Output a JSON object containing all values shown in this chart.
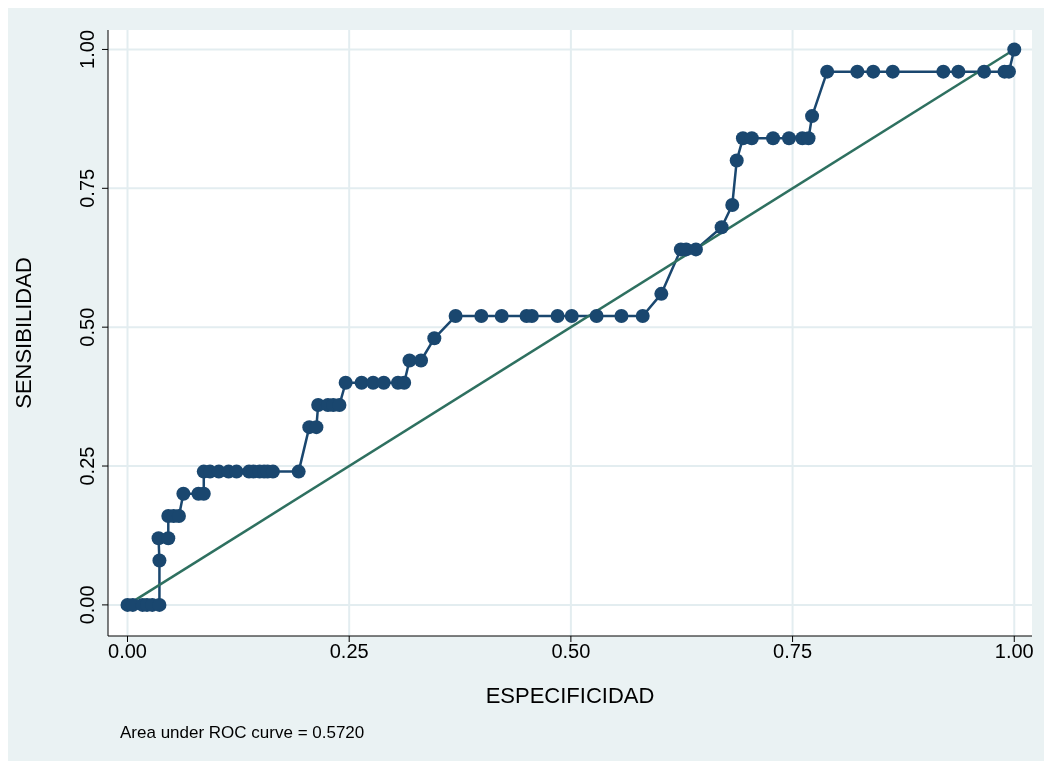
{
  "chart_data": {
    "type": "line",
    "xlabel": "ESPECIFICIDAD",
    "ylabel": "SENSIBILIDAD",
    "annotations": [
      "Area under ROC curve = 0.5720"
    ],
    "xlim": [
      -0.022,
      1.02
    ],
    "ylim": [
      -0.056,
      1.035
    ],
    "xticks": [
      {
        "value": 0,
        "label": "0.00"
      },
      {
        "value": 0.25,
        "label": "0.25"
      },
      {
        "value": 0.5,
        "label": "0.50"
      },
      {
        "value": 0.75,
        "label": "0.75"
      },
      {
        "value": 1,
        "label": "1.00"
      }
    ],
    "yticks": [
      {
        "value": 0,
        "label": "0.00"
      },
      {
        "value": 0.25,
        "label": "0.25"
      },
      {
        "value": 0.5,
        "label": "0.50"
      },
      {
        "value": 0.75,
        "label": "0.75"
      },
      {
        "value": 1,
        "label": "1.00"
      }
    ],
    "grid": true,
    "legend": false,
    "series": [
      {
        "color": "#1a476f",
        "marker": "circle",
        "x": [
          0,
          0.006,
          0.017,
          0.022,
          0.028,
          0.036,
          0.036,
          0.035,
          0.046,
          0.046,
          0.052,
          0.058,
          0.063,
          0.08,
          0.086,
          0.086,
          0.093,
          0.103,
          0.114,
          0.123,
          0.137,
          0.142,
          0.149,
          0.154,
          0.158,
          0.164,
          0.193,
          0.205,
          0.213,
          0.215,
          0.226,
          0.232,
          0.239,
          0.246,
          0.264,
          0.277,
          0.289,
          0.305,
          0.312,
          0.318,
          0.331,
          0.346,
          0.37,
          0.399,
          0.422,
          0.45,
          0.456,
          0.485,
          0.501,
          0.529,
          0.557,
          0.581,
          0.602,
          0.624,
          0.63,
          0.641,
          0.67,
          0.682,
          0.687,
          0.694,
          0.704,
          0.728,
          0.746,
          0.761,
          0.768,
          0.772,
          0.789,
          0.823,
          0.841,
          0.863,
          0.92,
          0.937,
          0.966,
          0.989,
          0.994,
          1.0
        ],
        "values": [
          0,
          0,
          0,
          0,
          0,
          0,
          0.08,
          0.12,
          0.12,
          0.16,
          0.16,
          0.16,
          0.2,
          0.2,
          0.2,
          0.24,
          0.24,
          0.24,
          0.24,
          0.24,
          0.24,
          0.24,
          0.24,
          0.24,
          0.24,
          0.24,
          0.24,
          0.32,
          0.32,
          0.36,
          0.36,
          0.36,
          0.36,
          0.4,
          0.4,
          0.4,
          0.4,
          0.4,
          0.4,
          0.44,
          0.44,
          0.48,
          0.52,
          0.52,
          0.52,
          0.52,
          0.52,
          0.52,
          0.52,
          0.52,
          0.52,
          0.52,
          0.56,
          0.64,
          0.64,
          0.64,
          0.68,
          0.72,
          0.8,
          0.84,
          0.84,
          0.84,
          0.84,
          0.84,
          0.84,
          0.88,
          0.96,
          0.96,
          0.96,
          0.96,
          0.96,
          0.96,
          0.96,
          0.96,
          0.96,
          1.0
        ]
      },
      {
        "color": "#2e7060",
        "marker": "none",
        "x": [
          0,
          1
        ],
        "values": [
          0,
          1
        ]
      }
    ]
  }
}
